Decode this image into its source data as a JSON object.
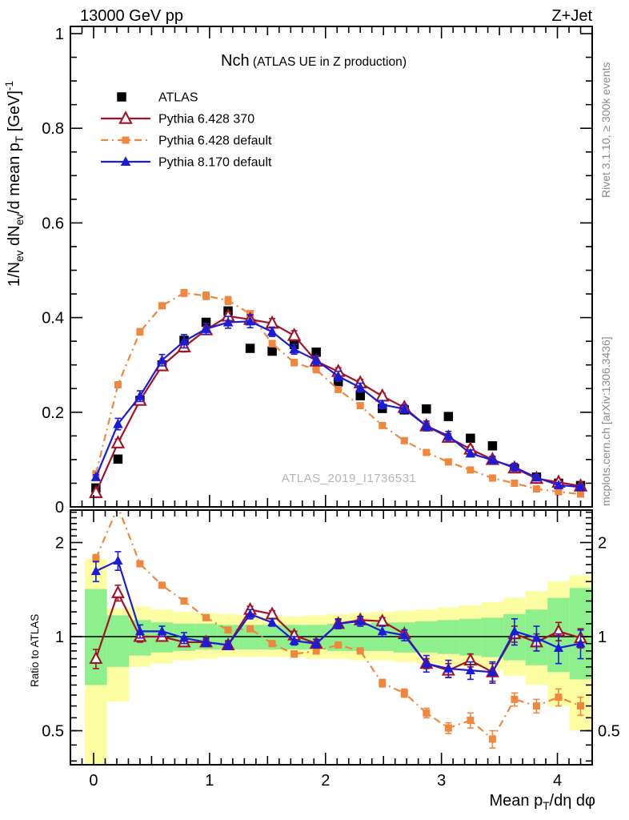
{
  "header": {
    "left": "13000 GeV pp",
    "right": "Z+Jet"
  },
  "title": {
    "parts": [
      {
        "t": "Nch",
        "style": "big"
      },
      {
        "t": " (ATLAS UE in Z production)",
        "style": "small"
      }
    ]
  },
  "watermark": "ATLAS_2019_I1736531",
  "side_notes": {
    "top": "Rivet 3.1.10, ≥ 300k events",
    "bottom": "mcplots.cern.ch [arXiv:1306.3436]"
  },
  "axes": {
    "x": {
      "label_parts": [
        {
          "t": "Mean p"
        },
        {
          "t": "T",
          "style": "sub"
        },
        {
          "t": "/dη dφ"
        }
      ],
      "ticks": [
        {
          "v": 0,
          "l": "0"
        },
        {
          "v": 1,
          "l": "1"
        },
        {
          "v": 2,
          "l": "2"
        },
        {
          "v": 3,
          "l": "3"
        },
        {
          "v": 4,
          "l": "4"
        }
      ],
      "range": [
        -0.2,
        4.3
      ]
    },
    "y_main": {
      "label_parts": [
        {
          "t": "1/N"
        },
        {
          "t": "ev",
          "style": "sub"
        },
        {
          "t": " dN"
        },
        {
          "t": "ev",
          "style": "sub"
        },
        {
          "t": "/d mean p"
        },
        {
          "t": "T",
          "style": "sub"
        },
        {
          "t": " [GeV]"
        },
        {
          "t": "-1",
          "style": "sup"
        }
      ],
      "ticks": [
        {
          "v": 0,
          "l": "0"
        },
        {
          "v": 0.2,
          "l": "0.2"
        },
        {
          "v": 0.4,
          "l": "0.4"
        },
        {
          "v": 0.6,
          "l": "0.6"
        },
        {
          "v": 0.8,
          "l": "0.8"
        },
        {
          "v": 1,
          "l": "1"
        }
      ],
      "range": [
        0,
        1.015
      ]
    },
    "y_ratio": {
      "label": "Ratio to ATLAS",
      "ticks": [
        {
          "v": 0.5,
          "l": "0.5"
        },
        {
          "v": 1,
          "l": "1"
        },
        {
          "v": 2,
          "l": "2"
        }
      ],
      "range": [
        0.389,
        2.54
      ],
      "scale": "log"
    }
  },
  "colors": {
    "atlas": "#000000",
    "py6_370": "#a31226",
    "py6_def": "#f0873c",
    "py8_def": "#1c1cd8",
    "band_yellow": "#fdfda2",
    "band_green": "#8df08d",
    "gray_text": "#8a8a8a",
    "watermark": "#b5b5b5"
  },
  "legend": {
    "items": [
      {
        "key": "atlas",
        "label": "ATLAS",
        "marker": "square-filled",
        "line": "none",
        "color": "#000000"
      },
      {
        "key": "py6_370",
        "label": "Pythia 6.428 370",
        "marker": "triangle-open",
        "line": "solid",
        "color": "#a31226"
      },
      {
        "key": "py6_def",
        "label": "Pythia 6.428 default",
        "marker": "square-filled",
        "line": "dashdot",
        "color": "#f0873c"
      },
      {
        "key": "py8_def",
        "label": "Pythia 8.170 default",
        "marker": "triangle-filled",
        "line": "solid",
        "color": "#1c1cd8"
      }
    ]
  },
  "chart_data": {
    "type": "line",
    "title": "Nch (ATLAS UE in Z production)",
    "xlabel": "Mean pT/deta dphi",
    "ylabel_main": "1/Nev dNev/d mean pT [GeV]^-1",
    "ylabel_ratio": "Ratio to ATLAS",
    "x_range": [
      -0.2,
      4.3
    ],
    "y_main_range": [
      0,
      1.015
    ],
    "y_ratio_range": [
      0.389,
      2.54
    ],
    "ratio_scale": "log",
    "ratio_reference": 1,
    "x": [
      0.02,
      0.21,
      0.4,
      0.59,
      0.78,
      0.97,
      1.16,
      1.35,
      1.54,
      1.73,
      1.92,
      2.11,
      2.3,
      2.49,
      2.68,
      2.87,
      3.06,
      3.25,
      3.44,
      3.63,
      3.82,
      4.01,
      4.2
    ],
    "series_main": [
      {
        "key": "atlas",
        "name": "ATLAS",
        "values": [
          0.04,
          0.101,
          0.225,
          0.3,
          0.352,
          0.39,
          0.414,
          0.335,
          0.329,
          0.343,
          0.327,
          0.264,
          0.235,
          0.208,
          0.205,
          0.207,
          0.191,
          0.145,
          0.129,
          0.081,
          0.063,
          0.05,
          0.045
        ]
      },
      {
        "key": "py6_def",
        "name": "Pythia 6.428 default",
        "values": [
          0.07,
          0.258,
          0.37,
          0.425,
          0.452,
          0.446,
          0.436,
          0.408,
          0.345,
          0.305,
          0.29,
          0.248,
          0.214,
          0.172,
          0.14,
          0.115,
          0.095,
          0.078,
          0.061,
          0.05,
          0.038,
          0.032,
          0.027
        ]
      },
      {
        "key": "py6_370",
        "name": "Pythia 6.428 370",
        "values": [
          0.03,
          0.135,
          0.225,
          0.298,
          0.338,
          0.374,
          0.403,
          0.396,
          0.388,
          0.362,
          0.308,
          0.286,
          0.262,
          0.234,
          0.21,
          0.171,
          0.147,
          0.122,
          0.1,
          0.082,
          0.06,
          0.052,
          0.044
        ]
      },
      {
        "key": "py8_def",
        "name": "Pythia 8.170 default",
        "values": [
          0.063,
          0.175,
          0.234,
          0.31,
          0.35,
          0.376,
          0.39,
          0.392,
          0.37,
          0.333,
          0.31,
          0.276,
          0.252,
          0.216,
          0.207,
          0.171,
          0.15,
          0.113,
          0.099,
          0.084,
          0.062,
          0.046,
          0.042
        ]
      }
    ],
    "series_ratio": [
      {
        "key": "py6_def",
        "name": "Pythia 6.428 default",
        "values": [
          1.78,
          2.6,
          1.71,
          1.46,
          1.3,
          1.15,
          1.05,
          1.06,
          0.95,
          0.88,
          0.9,
          0.94,
          0.9,
          0.71,
          0.66,
          0.57,
          0.51,
          0.54,
          0.47,
          0.63,
          0.6,
          0.64,
          0.6
        ],
        "errors": [
          0.05,
          0.06,
          0.03,
          0.02,
          0.02,
          0.02,
          0.02,
          0.02,
          0.02,
          0.02,
          0.02,
          0.02,
          0.02,
          0.02,
          0.02,
          0.02,
          0.02,
          0.03,
          0.03,
          0.03,
          0.03,
          0.04,
          0.04
        ]
      },
      {
        "key": "py6_370",
        "name": "Pythia 6.428 370",
        "values": [
          0.85,
          1.38,
          1.0,
          1.0,
          0.96,
          0.96,
          0.94,
          1.22,
          1.18,
          1.01,
          0.95,
          1.1,
          1.13,
          1.12,
          1.02,
          0.82,
          0.78,
          0.84,
          0.77,
          1.02,
          0.96,
          1.04,
          0.99
        ],
        "errors": [
          0.06,
          0.08,
          0.04,
          0.03,
          0.03,
          0.02,
          0.02,
          0.03,
          0.03,
          0.03,
          0.03,
          0.03,
          0.03,
          0.03,
          0.03,
          0.03,
          0.04,
          0.04,
          0.05,
          0.06,
          0.06,
          0.07,
          0.07
        ]
      },
      {
        "key": "py8_def",
        "name": "Pythia 8.170 default",
        "values": [
          1.62,
          1.75,
          1.04,
          1.04,
          0.99,
          0.96,
          0.94,
          1.18,
          1.11,
          0.97,
          0.95,
          1.1,
          1.12,
          1.04,
          1.01,
          0.82,
          0.79,
          0.78,
          0.77,
          1.04,
          0.99,
          0.92,
          0.95
        ],
        "errors": [
          0.12,
          0.12,
          0.05,
          0.04,
          0.04,
          0.03,
          0.03,
          0.04,
          0.03,
          0.03,
          0.03,
          0.04,
          0.04,
          0.04,
          0.04,
          0.05,
          0.05,
          0.05,
          0.06,
          0.1,
          0.09,
          0.1,
          0.1
        ]
      }
    ],
    "bands": {
      "yellow": [
        [
          0.38,
          1.77
        ],
        [
          0.62,
          1.23
        ],
        [
          0.8,
          1.25
        ],
        [
          0.82,
          1.22
        ],
        [
          0.84,
          1.2
        ],
        [
          0.85,
          1.19
        ],
        [
          0.86,
          1.18
        ],
        [
          0.86,
          1.17
        ],
        [
          0.86,
          1.16
        ],
        [
          0.86,
          1.16
        ],
        [
          0.85,
          1.17
        ],
        [
          0.85,
          1.18
        ],
        [
          0.84,
          1.19
        ],
        [
          0.84,
          1.2
        ],
        [
          0.83,
          1.21
        ],
        [
          0.82,
          1.22
        ],
        [
          0.81,
          1.24
        ],
        [
          0.8,
          1.26
        ],
        [
          0.78,
          1.29
        ],
        [
          0.75,
          1.33
        ],
        [
          0.7,
          1.4
        ],
        [
          0.6,
          1.5
        ],
        [
          0.5,
          1.57
        ]
      ],
      "green": [
        [
          0.7,
          1.42
        ],
        [
          0.8,
          1.17
        ],
        [
          0.87,
          1.13
        ],
        [
          0.89,
          1.11
        ],
        [
          0.9,
          1.1
        ],
        [
          0.91,
          1.1
        ],
        [
          0.91,
          1.09
        ],
        [
          0.91,
          1.09
        ],
        [
          0.91,
          1.09
        ],
        [
          0.91,
          1.09
        ],
        [
          0.91,
          1.09
        ],
        [
          0.9,
          1.1
        ],
        [
          0.9,
          1.1
        ],
        [
          0.9,
          1.11
        ],
        [
          0.89,
          1.11
        ],
        [
          0.89,
          1.12
        ],
        [
          0.88,
          1.13
        ],
        [
          0.87,
          1.14
        ],
        [
          0.86,
          1.15
        ],
        [
          0.84,
          1.18
        ],
        [
          0.81,
          1.22
        ],
        [
          0.77,
          1.33
        ],
        [
          0.73,
          1.43
        ]
      ]
    }
  }
}
